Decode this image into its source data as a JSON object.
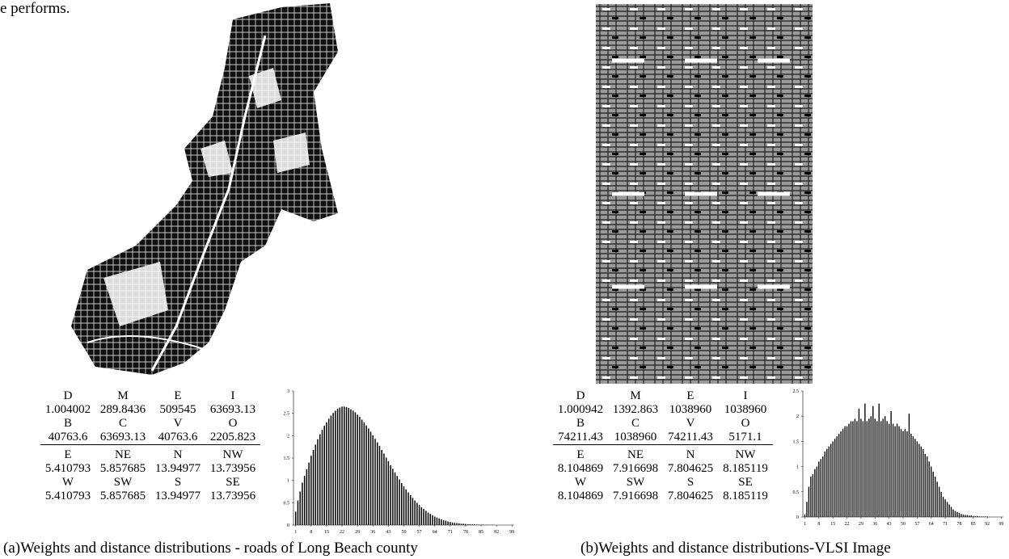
{
  "header_fragment": "e performs.",
  "panels": [
    {
      "caption": "(a)Weights and distance distributions - roads of Long Beach county",
      "table": {
        "rows": [
          [
            "D",
            "M",
            "E",
            "I"
          ],
          [
            "1.004002",
            "289.8436",
            "509545",
            "63693.13"
          ],
          [
            "B",
            "C",
            "V",
            "O"
          ],
          [
            "40763.6",
            "63693.13",
            "40763.6",
            "2205.823"
          ],
          [
            "E",
            "NE",
            "N",
            "NW"
          ],
          [
            "5.410793",
            "5.857685",
            "13.94977",
            "13.73956"
          ],
          [
            "W",
            "SW",
            "S",
            "SE"
          ],
          [
            "5.410793",
            "5.857685",
            "13.94977",
            "13.73956"
          ]
        ]
      }
    },
    {
      "caption": "(b)Weights and distance distributions-VLSI Image",
      "table": {
        "rows": [
          [
            "D",
            "M",
            "E",
            "I"
          ],
          [
            "1.000942",
            "1392.863",
            "1038960",
            "1038960"
          ],
          [
            "B",
            "C",
            "V",
            "O"
          ],
          [
            "74211.43",
            "1038960",
            "74211.43",
            "5171.1"
          ],
          [
            "E",
            "NE",
            "N",
            "NW"
          ],
          [
            "8.104869",
            "7.916698",
            "7.804625",
            "8.185119"
          ],
          [
            "W",
            "SW",
            "S",
            "SE"
          ],
          [
            "8.104869",
            "7.916698",
            "7.804625",
            "8.185119"
          ]
        ]
      }
    }
  ],
  "chart_data": [
    {
      "type": "bar",
      "color": "#000000",
      "x": [
        1,
        2,
        3,
        4,
        5,
        6,
        7,
        8,
        9,
        10,
        11,
        12,
        13,
        14,
        15,
        16,
        17,
        18,
        19,
        20,
        21,
        22,
        23,
        24,
        25,
        26,
        27,
        28,
        29,
        30,
        31,
        32,
        33,
        34,
        35,
        36,
        37,
        38,
        39,
        40,
        41,
        42,
        43,
        44,
        45,
        46,
        47,
        48,
        49,
        50,
        51,
        52,
        53,
        54,
        55,
        56,
        57,
        58,
        59,
        60,
        61,
        62,
        63,
        64,
        65,
        66,
        67,
        68,
        69,
        70,
        71,
        72,
        73,
        74,
        75,
        76,
        77,
        78,
        79,
        80,
        81,
        82,
        83,
        84,
        85,
        86,
        87,
        88,
        89,
        90,
        91,
        92,
        93,
        94,
        95,
        96,
        97,
        98,
        99
      ],
      "values": [
        0.3,
        0.55,
        0.75,
        0.95,
        1.1,
        1.25,
        1.4,
        1.55,
        1.68,
        1.8,
        1.92,
        2.03,
        2.13,
        2.22,
        2.3,
        2.38,
        2.45,
        2.51,
        2.56,
        2.6,
        2.63,
        2.65,
        2.65,
        2.64,
        2.62,
        2.59,
        2.56,
        2.52,
        2.47,
        2.42,
        2.36,
        2.3,
        2.23,
        2.16,
        2.09,
        2.01,
        1.93,
        1.85,
        1.77,
        1.68,
        1.6,
        1.51,
        1.43,
        1.34,
        1.26,
        1.18,
        1.1,
        1.02,
        0.94,
        0.87,
        0.8,
        0.73,
        0.67,
        0.61,
        0.55,
        0.5,
        0.45,
        0.4,
        0.36,
        0.32,
        0.28,
        0.25,
        0.22,
        0.19,
        0.17,
        0.15,
        0.13,
        0.11,
        0.1,
        0.08,
        0.07,
        0.06,
        0.05,
        0.045,
        0.04,
        0.03,
        0.03,
        0.025,
        0.02,
        0.02,
        0.015,
        0.015,
        0.01,
        0.01,
        0.01,
        0.01,
        0.005,
        0.005,
        0.005,
        0.005,
        0,
        0,
        0,
        0,
        0,
        0,
        0,
        0,
        0
      ],
      "xlim": [
        0,
        100
      ],
      "xticks": [
        1,
        8,
        15,
        22,
        29,
        36,
        43,
        50,
        57,
        64,
        71,
        78,
        85,
        92,
        99
      ],
      "ylim": [
        0,
        3
      ],
      "yticks": [
        0,
        0.5,
        1,
        1.5,
        2,
        2.5,
        3
      ]
    },
    {
      "type": "bar",
      "color": "#000000",
      "x": [
        1,
        2,
        3,
        4,
        5,
        6,
        7,
        8,
        9,
        10,
        11,
        12,
        13,
        14,
        15,
        16,
        17,
        18,
        19,
        20,
        21,
        22,
        23,
        24,
        25,
        26,
        27,
        28,
        29,
        30,
        31,
        32,
        33,
        34,
        35,
        36,
        37,
        38,
        39,
        40,
        41,
        42,
        43,
        44,
        45,
        46,
        47,
        48,
        49,
        50,
        51,
        52,
        53,
        54,
        55,
        56,
        57,
        58,
        59,
        60,
        61,
        62,
        63,
        64,
        65,
        66,
        67,
        68,
        69,
        70,
        71,
        72,
        73,
        74,
        75,
        76,
        77,
        78,
        79,
        80,
        81,
        82,
        83,
        84,
        85,
        86,
        87,
        88,
        89,
        90,
        91,
        92,
        93,
        94,
        95,
        96,
        97,
        98,
        99
      ],
      "values": [
        0.05,
        0.3,
        0.6,
        0.8,
        0.85,
        0.95,
        1.0,
        1.1,
        1.15,
        1.2,
        1.3,
        1.35,
        1.4,
        1.45,
        1.5,
        1.55,
        1.6,
        1.65,
        1.7,
        1.75,
        1.8,
        1.8,
        1.85,
        1.9,
        1.9,
        1.95,
        1.9,
        2.15,
        1.95,
        1.9,
        2.25,
        1.9,
        1.95,
        2.0,
        2.2,
        1.95,
        1.9,
        2.25,
        1.9,
        1.95,
        2.0,
        1.9,
        1.85,
        2.1,
        1.85,
        1.8,
        1.85,
        1.8,
        1.75,
        1.7,
        1.75,
        1.7,
        2.05,
        1.65,
        1.6,
        1.55,
        1.5,
        1.45,
        1.4,
        1.35,
        1.25,
        1.2,
        1.1,
        1.0,
        0.9,
        0.8,
        0.7,
        0.6,
        0.5,
        0.4,
        0.35,
        0.3,
        0.25,
        0.2,
        0.15,
        0.12,
        0.1,
        0.08,
        0.06,
        0.05,
        0.04,
        0.04,
        0.03,
        0.03,
        0.02,
        0.02,
        0.02,
        0.01,
        0.01,
        0.01,
        0.01,
        0.01,
        0,
        0,
        0,
        0,
        0,
        0,
        0
      ],
      "xlim": [
        0,
        100
      ],
      "xticks": [
        1,
        8,
        15,
        22,
        29,
        36,
        43,
        50,
        57,
        64,
        71,
        78,
        85,
        92,
        99
      ],
      "ylim": [
        0,
        2.5
      ],
      "yticks": [
        0,
        0.5,
        1,
        1.5,
        2,
        2.5
      ]
    }
  ]
}
